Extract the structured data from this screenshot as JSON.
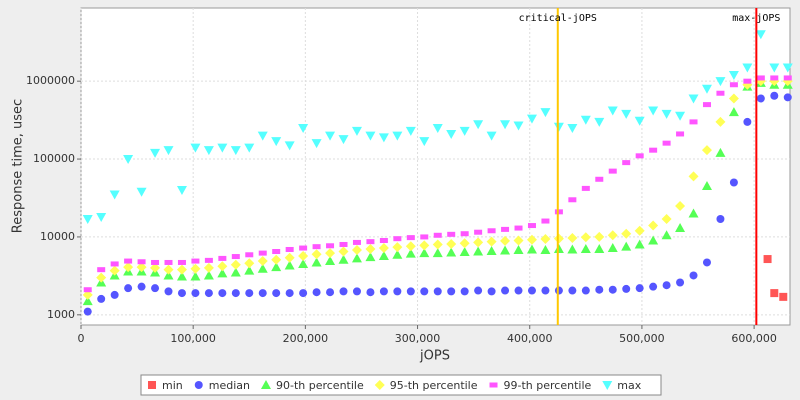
{
  "chart_data": {
    "type": "scatter",
    "x_label": "jOPS",
    "y_label": "Response time, usec",
    "log_y": true,
    "grid": true,
    "xlim": [
      0,
      632000
    ],
    "ylim": [
      740,
      8700000
    ],
    "xticks": [
      0,
      {
        "value": 100000,
        "label": "100,000"
      },
      {
        "value": 200000,
        "label": "200,000"
      },
      {
        "value": 300000,
        "label": "300,000"
      },
      {
        "value": 400000,
        "label": "400,000"
      },
      {
        "value": 500000,
        "label": "500,000"
      },
      {
        "value": 600000,
        "label": "600,000"
      }
    ],
    "yticks": [
      1000,
      10000,
      100000,
      1000000
    ],
    "markers": [
      {
        "label": "critical-jOPS",
        "value": 425000,
        "color": "#ffc800"
      },
      {
        "label": "max-jOPS",
        "value": 602000,
        "color": "#ff0000"
      }
    ],
    "x": [
      6000,
      18000,
      30000,
      42000,
      54000,
      66000,
      78000,
      90000,
      102000,
      114000,
      126000,
      138000,
      150000,
      162000,
      174000,
      186000,
      198000,
      210000,
      222000,
      234000,
      246000,
      258000,
      270000,
      282000,
      294000,
      306000,
      318000,
      330000,
      342000,
      354000,
      366000,
      378000,
      390000,
      402000,
      414000,
      426000,
      438000,
      450000,
      462000,
      474000,
      486000,
      498000,
      510000,
      522000,
      534000,
      546000,
      558000,
      570000,
      582000,
      594000,
      606000,
      618000,
      630000
    ],
    "series": [
      {
        "name": "min",
        "color": "#ff5555",
        "shape": "square",
        "x": [
          612000,
          618000,
          626000
        ],
        "values": [
          5200,
          1900,
          1700
        ]
      },
      {
        "name": "median",
        "color": "#5555ff",
        "shape": "circle",
        "values": [
          1100,
          1600,
          1800,
          2200,
          2300,
          2200,
          2000,
          1900,
          1900,
          1900,
          1900,
          1900,
          1900,
          1900,
          1900,
          1900,
          1900,
          1950,
          1950,
          2000,
          2000,
          1950,
          2000,
          2000,
          2000,
          2000,
          2000,
          2000,
          2000,
          2050,
          2000,
          2050,
          2050,
          2050,
          2050,
          2050,
          2050,
          2050,
          2100,
          2100,
          2150,
          2200,
          2300,
          2400,
          2600,
          3200,
          4700,
          17000,
          50000,
          300000,
          600000,
          650000,
          620000
        ]
      },
      {
        "name": "90-th percentile",
        "color": "#55ff55",
        "shape": "triangle-up",
        "values": [
          1500,
          2600,
          3200,
          3600,
          3600,
          3500,
          3200,
          3100,
          3100,
          3200,
          3400,
          3500,
          3700,
          3900,
          4100,
          4300,
          4500,
          4700,
          4900,
          5100,
          5300,
          5500,
          5700,
          5900,
          6100,
          6200,
          6200,
          6300,
          6400,
          6500,
          6600,
          6700,
          6800,
          6900,
          6800,
          7000,
          6900,
          7000,
          7000,
          7200,
          7500,
          8000,
          9000,
          10500,
          13000,
          20000,
          45000,
          120000,
          400000,
          850000,
          950000,
          900000,
          900000
        ]
      },
      {
        "name": "95-th percentile",
        "color": "#ffff55",
        "shape": "diamond",
        "values": [
          1800,
          3000,
          3700,
          4100,
          4100,
          4000,
          3800,
          3800,
          3900,
          4000,
          4200,
          4400,
          4600,
          4900,
          5100,
          5400,
          5700,
          6000,
          6200,
          6500,
          6800,
          7000,
          7200,
          7400,
          7600,
          7800,
          8000,
          8100,
          8300,
          8500,
          8700,
          8900,
          9000,
          9200,
          9400,
          9500,
          9700,
          9900,
          10000,
          10500,
          11000,
          12000,
          14000,
          17000,
          25000,
          60000,
          130000,
          300000,
          600000,
          900000,
          1000000,
          1000000,
          1000000
        ]
      },
      {
        "name": "99-th percentile",
        "color": "#ff55ff",
        "shape": "rect",
        "values": [
          2100,
          3800,
          4500,
          4900,
          4800,
          4700,
          4700,
          4700,
          4900,
          5000,
          5300,
          5600,
          5900,
          6200,
          6500,
          6900,
          7200,
          7500,
          7700,
          8000,
          8500,
          8700,
          9000,
          9500,
          9800,
          10000,
          10500,
          10800,
          11000,
          11500,
          12000,
          12500,
          13000,
          14000,
          16000,
          21000,
          30000,
          42000,
          55000,
          70000,
          90000,
          110000,
          130000,
          160000,
          210000,
          300000,
          500000,
          700000,
          900000,
          1000000,
          1100000,
          1100000,
          1100000
        ]
      },
      {
        "name": "max",
        "color": "#55ffff",
        "shape": "triangle-down",
        "values": [
          17000,
          18000,
          35000,
          100000,
          38000,
          120000,
          130000,
          40000,
          140000,
          130000,
          140000,
          130000,
          140000,
          200000,
          170000,
          150000,
          250000,
          160000,
          200000,
          180000,
          230000,
          200000,
          190000,
          200000,
          230000,
          170000,
          250000,
          210000,
          230000,
          280000,
          200000,
          280000,
          270000,
          330000,
          400000,
          260000,
          250000,
          320000,
          300000,
          420000,
          380000,
          310000,
          420000,
          380000,
          360000,
          600000,
          800000,
          1000000,
          1200000,
          1500000,
          4000000,
          1500000,
          1500000
        ]
      }
    ]
  }
}
